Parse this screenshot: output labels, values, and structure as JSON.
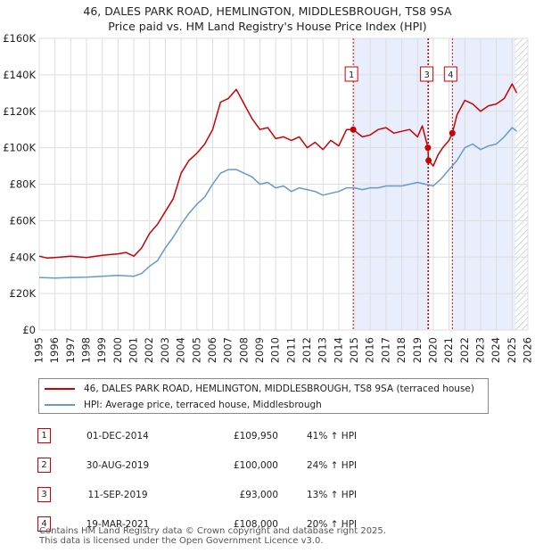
{
  "colors": {
    "property_line": "#cc0000",
    "hpi_line": "#6699cc",
    "shade": "#e8eefc",
    "grid": "#dddddd",
    "marker_border": "#cc0000",
    "vline": "#cc0000"
  },
  "chart_data": {
    "type": "line",
    "title": "46, DALES PARK ROAD, HEMLINGTON, MIDDLESBROUGH, TS8 9SA",
    "subtitle": "Price paid vs. HM Land Registry's House Price Index (HPI)",
    "xlabel": "",
    "ylabel": "",
    "xlim": [
      1995,
      2026
    ],
    "ylim": [
      0,
      160000
    ],
    "y_ticks": [
      0,
      20000,
      40000,
      60000,
      80000,
      100000,
      120000,
      140000,
      160000
    ],
    "y_tick_labels": [
      "£0",
      "£20K",
      "£40K",
      "£60K",
      "£80K",
      "£100K",
      "£120K",
      "£140K",
      "£160K"
    ],
    "x_ticks": [
      1995,
      1996,
      1997,
      1998,
      1999,
      2000,
      2001,
      2002,
      2003,
      2004,
      2005,
      2006,
      2007,
      2008,
      2009,
      2010,
      2011,
      2012,
      2013,
      2014,
      2015,
      2016,
      2017,
      2018,
      2019,
      2020,
      2021,
      2022,
      2023,
      2024,
      2025,
      2026
    ],
    "grid": true,
    "shaded_ranges": [
      [
        2014.92,
        2019.66
      ],
      [
        2021.21,
        2025.2
      ]
    ],
    "hatched_from": 2025.2,
    "series": [
      {
        "name": "46, DALES PARK ROAD, HEMLINGTON, MIDDLESBROUGH, TS8 9SA (terraced house)",
        "x": [
          1995,
          1995.5,
          1996,
          1997,
          1998,
          1999,
          2000,
          2000.5,
          2001,
          2001.5,
          2002,
          2002.5,
          2003,
          2003.5,
          2004,
          2004.5,
          2005,
          2005.5,
          2006,
          2006.5,
          2007,
          2007.5,
          2008,
          2008.5,
          2009,
          2009.5,
          2010,
          2010.5,
          2011,
          2011.5,
          2012,
          2012.5,
          2013,
          2013.5,
          2014,
          2014.5,
          2014.92,
          2015.5,
          2016,
          2016.5,
          2017,
          2017.5,
          2018,
          2018.5,
          2019,
          2019.3,
          2019.66,
          2019.7,
          2020,
          2020.3,
          2020.6,
          2021,
          2021.21,
          2021.5,
          2022,
          2022.5,
          2023,
          2023.5,
          2024,
          2024.5,
          2025,
          2025.3
        ],
        "values": [
          40500,
          39500,
          39800,
          40500,
          39800,
          41000,
          41800,
          42500,
          40500,
          45000,
          53000,
          58000,
          65000,
          72000,
          86000,
          93000,
          97000,
          102000,
          110000,
          125000,
          127000,
          132000,
          124000,
          116000,
          110000,
          111000,
          105000,
          106000,
          104000,
          106000,
          100000,
          103000,
          99000,
          104000,
          101000,
          110000,
          109950,
          106000,
          107000,
          110000,
          111000,
          108000,
          109000,
          110000,
          106000,
          112000,
          100000,
          93000,
          90000,
          96000,
          100000,
          104000,
          108000,
          118000,
          126000,
          124000,
          120000,
          123000,
          124000,
          127000,
          135000,
          130000
        ]
      },
      {
        "name": "HPI: Average price, terraced house, Middlesbrough",
        "x": [
          1995,
          1996,
          1997,
          1998,
          1999,
          2000,
          2001,
          2001.5,
          2002,
          2002.5,
          2003,
          2003.5,
          2004,
          2004.5,
          2005,
          2005.5,
          2006,
          2006.5,
          2007,
          2007.5,
          2008,
          2008.5,
          2009,
          2009.5,
          2010,
          2010.5,
          2011,
          2011.5,
          2012,
          2012.5,
          2013,
          2013.5,
          2014,
          2014.5,
          2015,
          2015.5,
          2016,
          2016.5,
          2017,
          2017.5,
          2018,
          2018.5,
          2019,
          2019.5,
          2020,
          2020.5,
          2021,
          2021.5,
          2022,
          2022.5,
          2023,
          2023.5,
          2024,
          2024.5,
          2025,
          2025.3
        ],
        "values": [
          28800,
          28500,
          28800,
          29000,
          29500,
          30000,
          29500,
          31000,
          35000,
          38000,
          45000,
          51000,
          58000,
          64000,
          69000,
          73000,
          80000,
          86000,
          88000,
          88000,
          86000,
          84000,
          80000,
          81000,
          78000,
          79000,
          76000,
          78000,
          77000,
          76000,
          74000,
          75000,
          76000,
          78000,
          78000,
          77000,
          78000,
          78000,
          79000,
          79000,
          79000,
          80000,
          81000,
          80000,
          79000,
          83000,
          88000,
          93000,
          100000,
          102000,
          99000,
          101000,
          102000,
          106000,
          111000,
          109000
        ]
      }
    ],
    "sale_markers": [
      {
        "id": "1",
        "x": 2014.92,
        "y": 109950
      },
      {
        "id": "2",
        "x": 2019.66,
        "y": 100000
      },
      {
        "id": "3",
        "x": 2019.7,
        "y": 93000
      },
      {
        "id": "4",
        "x": 2021.21,
        "y": 108000
      }
    ],
    "annotation_boxes": [
      {
        "id": "1",
        "x": 2014.92
      },
      {
        "id": "3",
        "x": 2019.7
      },
      {
        "id": "4",
        "x": 2021.21
      }
    ]
  },
  "legend": {
    "property_label": "46, DALES PARK ROAD, HEMLINGTON, MIDDLESBROUGH, TS8 9SA (terraced house)",
    "hpi_label": "HPI: Average price, terraced house, Middlesbrough"
  },
  "transactions": [
    {
      "num": "1",
      "date": "01-DEC-2014",
      "price": "£109,950",
      "hpi": "41% ↑ HPI"
    },
    {
      "num": "2",
      "date": "30-AUG-2019",
      "price": "£100,000",
      "hpi": "24% ↑ HPI"
    },
    {
      "num": "3",
      "date": "11-SEP-2019",
      "price": "£93,000",
      "hpi": "13% ↑ HPI"
    },
    {
      "num": "4",
      "date": "19-MAR-2021",
      "price": "£108,000",
      "hpi": "20% ↑ HPI"
    }
  ],
  "footer": {
    "line1": "Contains HM Land Registry data © Crown copyright and database right 2025.",
    "line2": "This data is licensed under the Open Government Licence v3.0."
  }
}
